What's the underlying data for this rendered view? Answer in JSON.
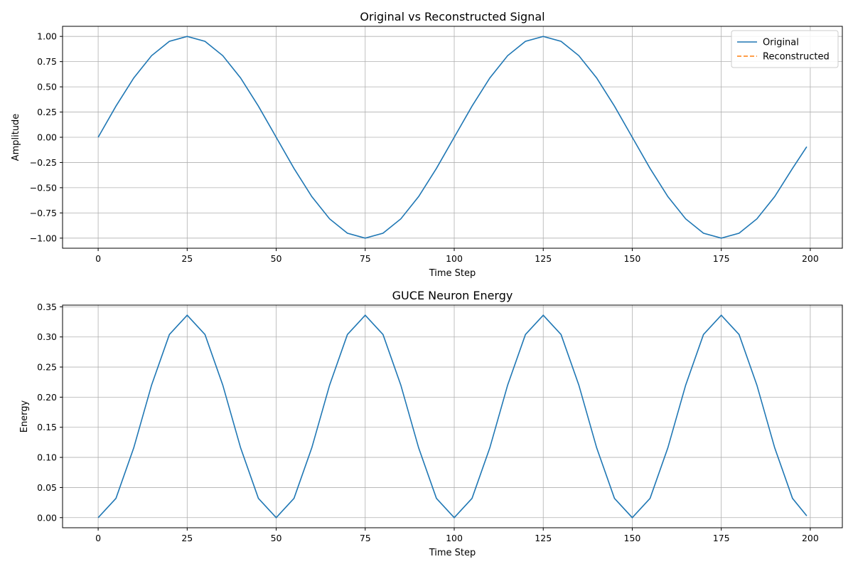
{
  "chart_data": [
    {
      "type": "line",
      "title": "Original vs Reconstructed Signal",
      "xlabel": "Time Step",
      "ylabel": "Amplitude",
      "xlim": [
        -10,
        209
      ],
      "ylim": [
        -1.1,
        1.1
      ],
      "xticks": [
        0,
        25,
        50,
        75,
        100,
        125,
        150,
        175,
        200
      ],
      "xtick_labels": [
        "0",
        "25",
        "50",
        "75",
        "100",
        "125",
        "150",
        "175",
        "200"
      ],
      "yticks": [
        1.0,
        0.75,
        0.5,
        0.25,
        0.0,
        -0.25,
        -0.5,
        -0.75,
        -1.0
      ],
      "ytick_labels": [
        "1.00",
        "0.75",
        "0.50",
        "0.25",
        "0.00",
        "−0.25",
        "−0.50",
        "−0.75",
        "−1.00"
      ],
      "grid": true,
      "legend": "top-right",
      "series": [
        {
          "name": "Original",
          "color": "#1f77b4",
          "dash": "solid",
          "x": [
            0,
            5,
            10,
            15,
            20,
            25,
            30,
            35,
            40,
            45,
            50,
            55,
            60,
            65,
            70,
            75,
            80,
            85,
            90,
            95,
            100,
            105,
            110,
            115,
            120,
            125,
            130,
            135,
            140,
            145,
            150,
            155,
            160,
            165,
            170,
            175,
            180,
            185,
            190,
            195,
            199
          ],
          "y": [
            0,
            0.309,
            0.588,
            0.809,
            0.951,
            1.0,
            0.951,
            0.809,
            0.588,
            0.309,
            0,
            -0.309,
            -0.588,
            -0.809,
            -0.951,
            -1.0,
            -0.951,
            -0.809,
            -0.588,
            -0.309,
            0,
            0.309,
            0.588,
            0.809,
            0.951,
            1.0,
            0.951,
            0.809,
            0.588,
            0.309,
            0,
            -0.309,
            -0.588,
            -0.809,
            -0.951,
            -1.0,
            -0.951,
            -0.809,
            -0.588,
            -0.309,
            -0.094
          ]
        },
        {
          "name": "Reconstructed",
          "color": "#ff7f0e",
          "dash": "dashed",
          "x": [],
          "y": []
        }
      ]
    },
    {
      "type": "line",
      "title": "GUCE Neuron Energy",
      "xlabel": "Time Step",
      "ylabel": "Energy",
      "xlim": [
        -10,
        209
      ],
      "ylim": [
        -0.0168,
        0.3528
      ],
      "xticks": [
        0,
        25,
        50,
        75,
        100,
        125,
        150,
        175,
        200
      ],
      "xtick_labels": [
        "0",
        "25",
        "50",
        "75",
        "100",
        "125",
        "150",
        "175",
        "200"
      ],
      "yticks": [
        0.35,
        0.3,
        0.25,
        0.2,
        0.15,
        0.1,
        0.05,
        0.0
      ],
      "ytick_labels": [
        "0.35",
        "0.30",
        "0.25",
        "0.20",
        "0.15",
        "0.10",
        "0.05",
        "0.00"
      ],
      "grid": true,
      "series": [
        {
          "color": "#1f77b4",
          "dash": "solid",
          "x": [
            0,
            5,
            10,
            15,
            20,
            25,
            30,
            35,
            40,
            45,
            50,
            55,
            60,
            65,
            70,
            75,
            80,
            85,
            90,
            95,
            100,
            105,
            110,
            115,
            120,
            125,
            130,
            135,
            140,
            145,
            150,
            155,
            160,
            165,
            170,
            175,
            180,
            185,
            190,
            195,
            199
          ],
          "y": [
            0,
            0.032,
            0.116,
            0.22,
            0.304,
            0.336,
            0.304,
            0.22,
            0.116,
            0.032,
            0,
            0.032,
            0.116,
            0.22,
            0.304,
            0.336,
            0.304,
            0.22,
            0.116,
            0.032,
            0,
            0.032,
            0.116,
            0.22,
            0.304,
            0.336,
            0.304,
            0.22,
            0.116,
            0.032,
            0,
            0.032,
            0.116,
            0.22,
            0.304,
            0.336,
            0.304,
            0.22,
            0.116,
            0.032,
            0.003
          ]
        }
      ]
    }
  ]
}
